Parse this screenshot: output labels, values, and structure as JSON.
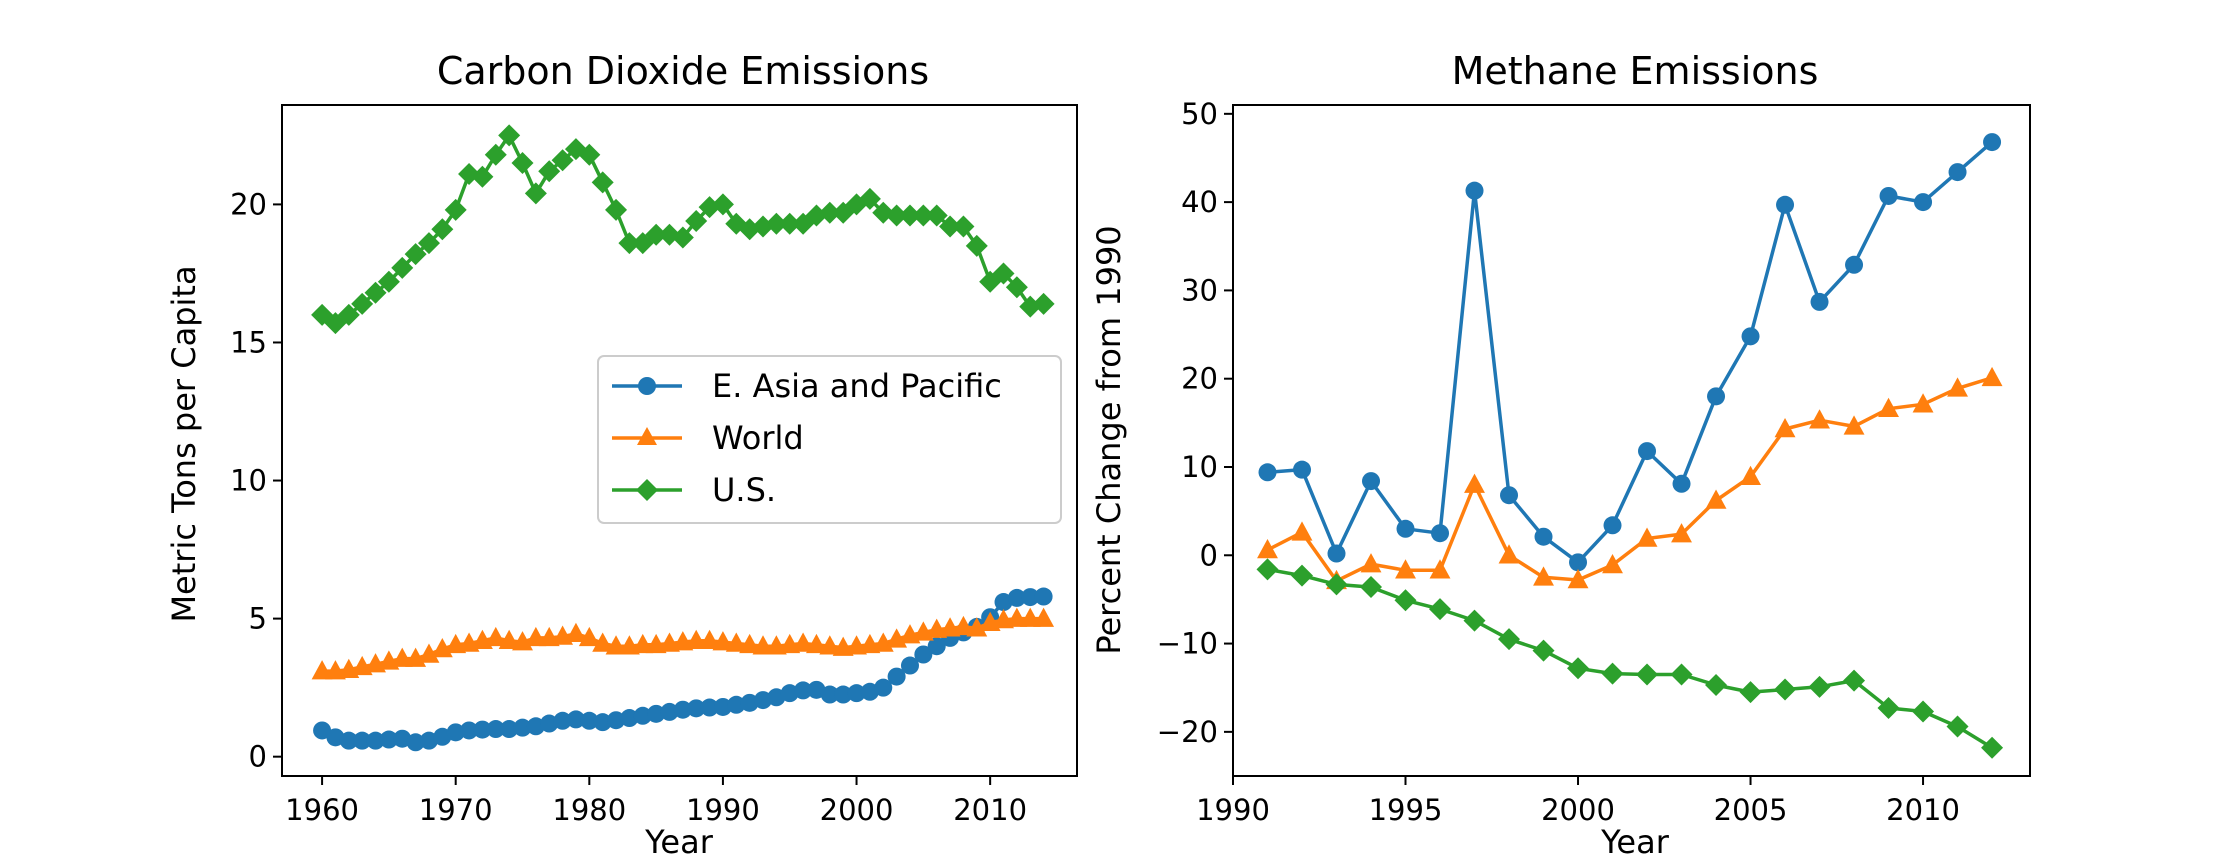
{
  "chart_data": [
    {
      "type": "line",
      "title": "Carbon Dioxide Emissions",
      "xlabel": "Year",
      "ylabel": "Metric Tons per Capita",
      "xlim": [
        1957,
        2016.5
      ],
      "ylim": [
        -0.7,
        23.6
      ],
      "xticks": [
        1960,
        1970,
        1980,
        1990,
        2000,
        2010
      ],
      "yticks": [
        0,
        5,
        10,
        15,
        20
      ],
      "legend": {
        "position": "center-right",
        "entries": [
          "E. Asia and Pacific",
          "World",
          "U.S."
        ]
      },
      "x": [
        1960,
        1961,
        1962,
        1963,
        1964,
        1965,
        1966,
        1967,
        1968,
        1969,
        1970,
        1971,
        1972,
        1973,
        1974,
        1975,
        1976,
        1977,
        1978,
        1979,
        1980,
        1981,
        1982,
        1983,
        1984,
        1985,
        1986,
        1987,
        1988,
        1989,
        1990,
        1991,
        1992,
        1993,
        1994,
        1995,
        1996,
        1997,
        1998,
        1999,
        2000,
        2001,
        2002,
        2003,
        2004,
        2005,
        2006,
        2007,
        2008,
        2009,
        2010,
        2011,
        2012,
        2013,
        2014
      ],
      "series": [
        {
          "name": "E. Asia and Pacific",
          "color": "#1f77b4",
          "marker": "circle",
          "values": [
            0.95,
            0.7,
            0.58,
            0.58,
            0.58,
            0.62,
            0.65,
            0.52,
            0.58,
            0.72,
            0.88,
            0.95,
            0.98,
            1.0,
            1.0,
            1.05,
            1.1,
            1.2,
            1.3,
            1.35,
            1.3,
            1.25,
            1.32,
            1.4,
            1.48,
            1.55,
            1.62,
            1.7,
            1.75,
            1.78,
            1.8,
            1.88,
            1.95,
            2.05,
            2.15,
            2.3,
            2.4,
            2.42,
            2.25,
            2.25,
            2.3,
            2.35,
            2.5,
            2.9,
            3.3,
            3.7,
            4.0,
            4.3,
            4.5,
            4.7,
            5.05,
            5.6,
            5.75,
            5.78,
            5.8
          ]
        },
        {
          "name": "World",
          "color": "#ff7f0e",
          "marker": "triangle",
          "values": [
            3.1,
            3.1,
            3.15,
            3.25,
            3.35,
            3.45,
            3.55,
            3.55,
            3.7,
            3.9,
            4.05,
            4.1,
            4.2,
            4.3,
            4.2,
            4.15,
            4.3,
            4.3,
            4.35,
            4.45,
            4.3,
            4.1,
            4.0,
            4.0,
            4.05,
            4.05,
            4.1,
            4.15,
            4.2,
            4.2,
            4.15,
            4.1,
            4.05,
            4.0,
            4.0,
            4.05,
            4.1,
            4.05,
            4.0,
            3.95,
            4.0,
            4.05,
            4.1,
            4.25,
            4.4,
            4.5,
            4.6,
            4.65,
            4.7,
            4.65,
            4.85,
            4.95,
            5.0,
            5.0,
            5.0
          ]
        },
        {
          "name": "U.S.",
          "color": "#2ca02c",
          "marker": "diamond",
          "values": [
            16.0,
            15.7,
            16.0,
            16.4,
            16.8,
            17.2,
            17.7,
            18.2,
            18.6,
            19.1,
            19.8,
            21.1,
            21.0,
            21.8,
            22.5,
            21.5,
            20.4,
            21.2,
            21.6,
            22.0,
            21.8,
            20.8,
            19.8,
            18.6,
            18.6,
            18.9,
            18.9,
            18.8,
            19.4,
            19.9,
            20.0,
            19.3,
            19.1,
            19.2,
            19.3,
            19.3,
            19.3,
            19.6,
            19.7,
            19.7,
            20.0,
            20.2,
            19.7,
            19.6,
            19.6,
            19.6,
            19.6,
            19.2,
            19.2,
            18.5,
            17.2,
            17.5,
            17.0,
            16.3,
            16.4
          ]
        }
      ]
    },
    {
      "type": "line",
      "title": "Methane Emissions",
      "xlabel": "Year",
      "ylabel": "Percent Change from 1990",
      "xlim": [
        1990,
        2013.1
      ],
      "ylim": [
        -25,
        51
      ],
      "xticks": [
        1990,
        1995,
        2000,
        2005,
        2010
      ],
      "yticks": [
        -20,
        -10,
        0,
        10,
        20,
        30,
        40,
        50
      ],
      "x": [
        1991,
        1992,
        1993,
        1994,
        1995,
        1996,
        1997,
        1998,
        1999,
        2000,
        2001,
        2002,
        2003,
        2004,
        2005,
        2006,
        2007,
        2008,
        2009,
        2010,
        2011,
        2012
      ],
      "series": [
        {
          "name": "E. Asia and Pacific",
          "color": "#1f77b4",
          "marker": "circle",
          "values": [
            9.4,
            9.7,
            0.2,
            8.4,
            3.0,
            2.5,
            41.3,
            6.8,
            2.1,
            -0.8,
            3.4,
            11.8,
            8.1,
            18.0,
            24.8,
            39.7,
            28.7,
            32.9,
            40.7,
            40.0,
            43.4,
            46.8
          ]
        },
        {
          "name": "World",
          "color": "#ff7f0e",
          "marker": "triangle",
          "values": [
            0.6,
            2.6,
            -2.9,
            -1.0,
            -1.7,
            -1.7,
            8.0,
            0.0,
            -2.5,
            -2.8,
            -1.1,
            1.9,
            2.4,
            6.2,
            8.9,
            14.3,
            15.3,
            14.6,
            16.6,
            17.1,
            18.9,
            20.1
          ]
        },
        {
          "name": "U.S.",
          "color": "#2ca02c",
          "marker": "diamond",
          "values": [
            -1.6,
            -2.3,
            -3.3,
            -3.6,
            -5.1,
            -6.1,
            -7.4,
            -9.5,
            -10.8,
            -12.8,
            -13.4,
            -13.5,
            -13.5,
            -14.7,
            -15.5,
            -15.2,
            -14.9,
            -14.2,
            -17.3,
            -17.7,
            -19.4,
            -21.8
          ]
        }
      ]
    }
  ]
}
